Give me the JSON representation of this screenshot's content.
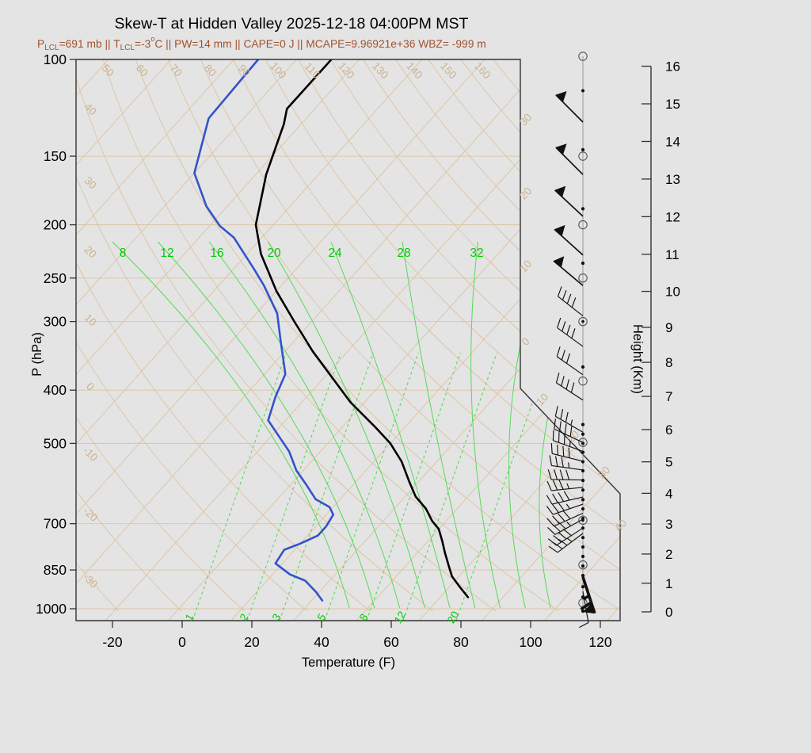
{
  "window": {
    "title": "Skew-T at Hidden Valley 2025-12-18 04:00PM MST"
  },
  "header": {
    "title": "Skew-T at Hidden Valley 2025-12-18 04:00PM MST",
    "subtitle_parts": [
      [
        "t",
        "P"
      ],
      [
        "sub",
        "LCL"
      ],
      [
        "t",
        "=691 mb || T"
      ],
      [
        "sub",
        "LCL"
      ],
      [
        "t",
        "=-3"
      ],
      [
        "sup",
        "o"
      ],
      [
        "t",
        "C || PW=14 mm || CAPE=0 J || MCAPE=9.96921e+36 WBZ= -999 m"
      ]
    ],
    "subtitle_plain": "PLCL=691 mb || TLCL=-3°C || PW=14 mm || CAPE=0 J || MCAPE=9.96921e+36 WBZ= -999 m"
  },
  "colors": {
    "background": "#e4e4e4",
    "subtitle": "#a0522d",
    "tan_line": "#dcc3a0",
    "tan_label": "#cdb18c",
    "green_line": "#57d957",
    "green_label": "#00cc00",
    "temperature_curve": "#000000",
    "dewpoint_curve": "#3353cc",
    "axis": "#333333",
    "staff": "#999999",
    "barb": "#111111"
  },
  "chart_data": {
    "type": "skewt-sounding",
    "title": "Skew-T at Hidden Valley 2025-12-18 04:00PM MST",
    "station": "Hidden Valley",
    "datetime": "2025-12-18 04:00PM MST",
    "parameters": {
      "P_LCL_mb": 691,
      "T_LCL_C": -3,
      "PW_mm": 14,
      "CAPE_J": 0,
      "MCAPE": "9.96921e+36",
      "WBZ_m": -999
    },
    "pressure_axis": {
      "label": "P (hPa)",
      "ticks": [
        100,
        150,
        200,
        250,
        300,
        400,
        500,
        700,
        850,
        1000
      ],
      "log_scale": true,
      "range": [
        100,
        1050
      ]
    },
    "temperature_axis": {
      "label": "Temperature (F)",
      "ticks": [
        -20,
        0,
        20,
        40,
        60,
        80,
        100,
        120
      ]
    },
    "height_axis": {
      "label": "Height (Km)",
      "ticks": [
        0,
        1,
        2,
        3,
        4,
        5,
        6,
        7,
        8,
        9,
        10,
        11,
        12,
        13,
        14,
        15,
        16
      ]
    },
    "dry_adiabat_labels_top": [
      "50",
      "60",
      "70",
      "80",
      "90",
      "100",
      "110",
      "120",
      "130",
      "140",
      "150",
      "160"
    ],
    "dry_adiabat_labels_left": [
      "40",
      "30",
      "20",
      "10",
      "0",
      "-10",
      "-20",
      "-30"
    ],
    "isotherm_labels_right_edge": [
      "30",
      "20",
      "10",
      "0"
    ],
    "isotherm_labels_diagonal": [
      "10",
      "20",
      "30",
      "40"
    ],
    "moist_adiabat_labels": [
      "8",
      "12",
      "16",
      "20",
      "24",
      "28",
      "32"
    ],
    "mixing_ratio_labels": [
      "1",
      "2",
      "3",
      "5",
      "8",
      "12",
      "20"
    ],
    "temperature_profile_p_F": [
      [
        100,
        -102
      ],
      [
        123,
        -102
      ],
      [
        131,
        -99
      ],
      [
        162,
        -91
      ],
      [
        200,
        -81
      ],
      [
        226,
        -72
      ],
      [
        247,
        -64
      ],
      [
        264,
        -58
      ],
      [
        300,
        -45
      ],
      [
        340,
        -32
      ],
      [
        375,
        -21
      ],
      [
        421,
        -8
      ],
      [
        469,
        6
      ],
      [
        500,
        14
      ],
      [
        540,
        22
      ],
      [
        585,
        29
      ],
      [
        625,
        35
      ],
      [
        657,
        41
      ],
      [
        692,
        46
      ],
      [
        716,
        50
      ],
      [
        752,
        54
      ],
      [
        792,
        58
      ],
      [
        842,
        63
      ],
      [
        873,
        66
      ],
      [
        913,
        71
      ],
      [
        953,
        76
      ]
    ],
    "dewpoint_profile_p_F": [
      [
        100,
        -123
      ],
      [
        128,
        -122
      ],
      [
        161,
        -112
      ],
      [
        185,
        -100
      ],
      [
        201,
        -91
      ],
      [
        211,
        -84
      ],
      [
        241,
        -70
      ],
      [
        258,
        -63
      ],
      [
        290,
        -52
      ],
      [
        325,
        -44
      ],
      [
        374,
        -34
      ],
      [
        411,
        -31
      ],
      [
        454,
        -27
      ],
      [
        489,
        -19
      ],
      [
        517,
        -13
      ],
      [
        560,
        -6
      ],
      [
        597,
        1
      ],
      [
        632,
        7
      ],
      [
        653,
        13
      ],
      [
        674,
        16
      ],
      [
        708,
        17
      ],
      [
        736,
        17
      ],
      [
        761,
        14
      ],
      [
        781,
        11
      ],
      [
        827,
        12
      ],
      [
        866,
        19
      ],
      [
        889,
        25
      ],
      [
        932,
        31
      ],
      [
        966,
        35
      ]
    ],
    "winds_p_spd_dir": [
      [
        130,
        50,
        315
      ],
      [
        162,
        50,
        315
      ],
      [
        193,
        50,
        313
      ],
      [
        227,
        50,
        312
      ],
      [
        258,
        50,
        310
      ],
      [
        293,
        40,
        308
      ],
      [
        333,
        40,
        306
      ],
      [
        375,
        30,
        305
      ],
      [
        417,
        40,
        303
      ],
      [
        477,
        35,
        300
      ],
      [
        498,
        40,
        295
      ],
      [
        517,
        35,
        290
      ],
      [
        539,
        40,
        284
      ],
      [
        559,
        35,
        278
      ],
      [
        583,
        40,
        271
      ],
      [
        601,
        35,
        264
      ],
      [
        626,
        40,
        257
      ],
      [
        645,
        35,
        251
      ],
      [
        670,
        40,
        246
      ],
      [
        687,
        35,
        241
      ],
      [
        713,
        40,
        237
      ],
      [
        729,
        35,
        233
      ],
      [
        875,
        65,
        162,
        "heavy"
      ],
      [
        930,
        10,
        170
      ]
    ],
    "station_circles_p": [
      98.7,
      150,
      200,
      250,
      300,
      385,
      498,
      690,
      832,
      976
    ],
    "station_dotted_circles_p": [
      300,
      690
    ],
    "station_dots_p": [
      114,
      146,
      187,
      235,
      363,
      462,
      481,
      500,
      519,
      540,
      561,
      584,
      608,
      633,
      658,
      685,
      713,
      742,
      772,
      803,
      836,
      870,
      912,
      952,
      1010
    ]
  }
}
